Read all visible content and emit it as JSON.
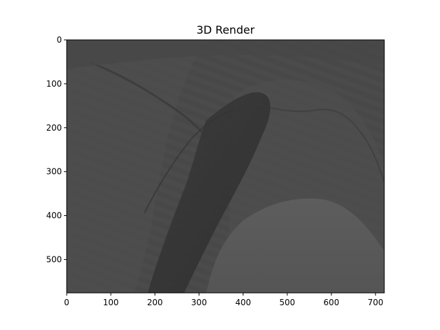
{
  "chart_data": {
    "type": "heatmap",
    "title": "3D Render",
    "xlabel": "",
    "ylabel": "",
    "xlim": [
      0,
      720
    ],
    "ylim": [
      576,
      0
    ],
    "x_ticks": [
      0,
      100,
      200,
      300,
      400,
      500,
      600,
      700
    ],
    "y_ticks": [
      0,
      100,
      200,
      300,
      400,
      500
    ],
    "x_tick_labels": [
      "0",
      "100",
      "200",
      "300",
      "400",
      "500",
      "600",
      "700"
    ],
    "y_tick_labels": [
      "0",
      "100",
      "200",
      "300",
      "400",
      "500"
    ],
    "grid": false,
    "colormap": "gray",
    "image_description": "grayscale rendered terrain with a smooth dome in the lower right"
  },
  "colors": {
    "background": "#ffffff",
    "axis": "#000000",
    "terrain_base": "#4a4a4a",
    "terrain_dark": "#333333",
    "terrain_light": "#5a5a5a",
    "dome": "#575757"
  }
}
